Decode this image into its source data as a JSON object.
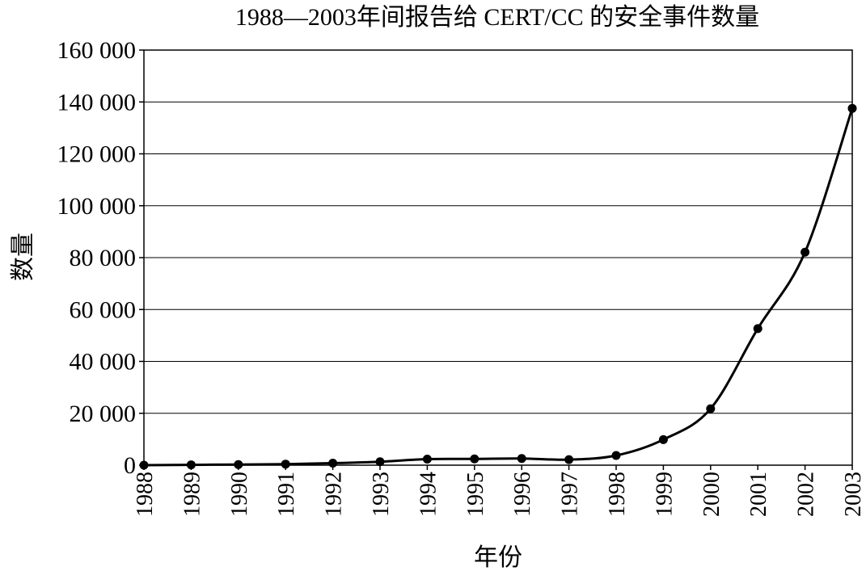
{
  "chart_data": {
    "type": "line",
    "title": "1988—2003年间报告给 CERT/CC 的安全事件数量",
    "xlabel": "年份",
    "ylabel": "数量",
    "x": [
      "1988",
      "1989",
      "1990",
      "1991",
      "1992",
      "1993",
      "1994",
      "1995",
      "1996",
      "1997",
      "1998",
      "1999",
      "2000",
      "2001",
      "2002",
      "2003"
    ],
    "series": [
      {
        "values": [
          6,
          132,
          252,
          406,
          773,
          1334,
          2340,
          2412,
          2573,
          2134,
          3734,
          9859,
          21756,
          52658,
          82094,
          137529
        ]
      }
    ],
    "ylim": [
      0,
      160000
    ],
    "yticks": [
      0,
      20000,
      40000,
      60000,
      80000,
      100000,
      120000,
      140000,
      160000
    ],
    "ytick_labels": [
      "0",
      "20 000",
      "40 000",
      "60 000",
      "80 000",
      "100 000",
      "120 000",
      "140 000",
      "160 000"
    ],
    "grid": "horizontal",
    "legend": "none",
    "line_color": "#000000",
    "marker": "filled-circle"
  }
}
